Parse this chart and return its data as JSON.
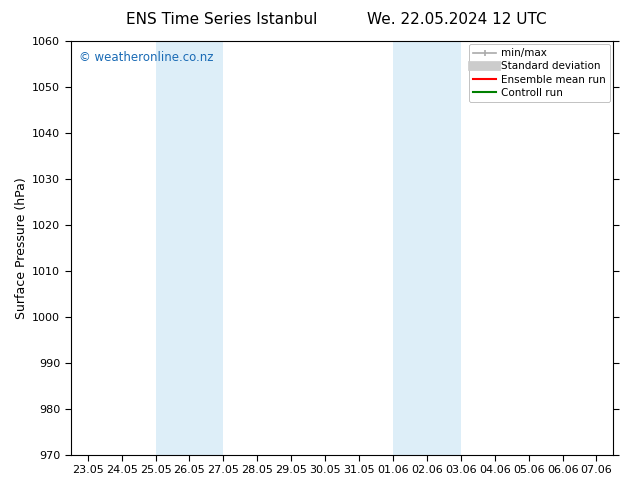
{
  "title_left": "ENS Time Series Istanbul",
  "title_right": "We. 22.05.2024 12 UTC",
  "ylabel": "Surface Pressure (hPa)",
  "ylim": [
    970,
    1060
  ],
  "yticks": [
    970,
    980,
    990,
    1000,
    1010,
    1020,
    1030,
    1040,
    1050,
    1060
  ],
  "xtick_labels": [
    "23.05",
    "24.05",
    "25.05",
    "26.05",
    "27.05",
    "28.05",
    "29.05",
    "30.05",
    "31.05",
    "01.06",
    "02.06",
    "03.06",
    "04.06",
    "05.06",
    "06.06",
    "07.06"
  ],
  "watermark_text": "© weatheronline.co.nz",
  "watermark_color": "#1a6bb5",
  "background_color": "#ffffff",
  "shaded_color": "#ddeef8",
  "legend_items": [
    {
      "label": "min/max",
      "color": "#aaaaaa",
      "lw": 1.2
    },
    {
      "label": "Standard deviation",
      "color": "#cccccc",
      "lw": 7
    },
    {
      "label": "Ensemble mean run",
      "color": "#ff0000",
      "lw": 1.5
    },
    {
      "label": "Controll run",
      "color": "#008000",
      "lw": 1.5
    }
  ],
  "title_fontsize": 11,
  "axis_label_fontsize": 9,
  "tick_fontsize": 8,
  "watermark_fontsize": 8.5,
  "legend_fontsize": 7.5
}
